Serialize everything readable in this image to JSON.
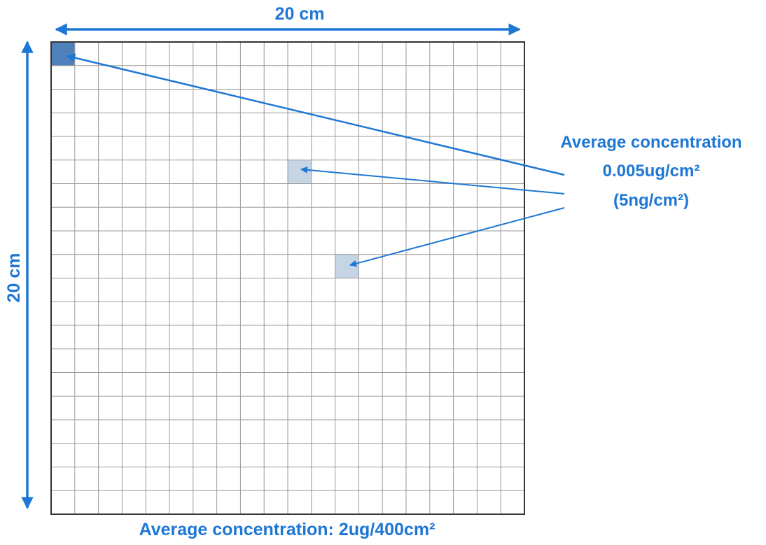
{
  "labels": {
    "width_dimension": "20 cm",
    "height_dimension": "20 cm",
    "callout_line1": "Average concentration",
    "callout_line2": "0.005ug/cm²",
    "callout_line3": "(5ng/cm²)",
    "bottom_caption": "Average concentration: 2ug/400cm²"
  },
  "grid": {
    "columns": 20,
    "rows": 20,
    "highlighted_cells": [
      {
        "col": 1,
        "row": 1,
        "shade": "dark"
      },
      {
        "col": 11,
        "row": 6,
        "shade": "light"
      },
      {
        "col": 13,
        "row": 10,
        "shade": "light"
      }
    ]
  },
  "colors": {
    "accent": "#1f77d4",
    "grid_line": "#9a9a9a",
    "border": "#333333",
    "cell_dark": "#4f82bd",
    "cell_light": "#c5d5e4"
  }
}
